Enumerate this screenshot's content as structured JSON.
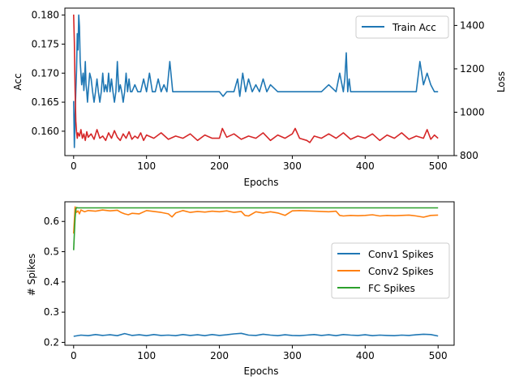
{
  "chart_data": [
    {
      "type": "line",
      "xlabel": "Epochs",
      "ylabel": "Acc",
      "ylabel_right": "Loss",
      "xlim": [
        -12,
        522
      ],
      "ylim": [
        0.1558,
        0.1812
      ],
      "ylim_right": [
        800,
        1480
      ],
      "xticks": [
        0,
        100,
        200,
        300,
        400,
        500
      ],
      "yticks": [
        0.16,
        0.165,
        0.17,
        0.175,
        0.18
      ],
      "yticks_right": [
        800,
        1000,
        1200,
        1400
      ],
      "legend": {
        "position": "top-right"
      },
      "series": [
        {
          "name": "Train Acc",
          "axis": "left",
          "color": "#1f77b4",
          "x": [
            0,
            1,
            2,
            3,
            4,
            5,
            6,
            7,
            8,
            9,
            10,
            11,
            12,
            13,
            14,
            15,
            16,
            17,
            18,
            19,
            20,
            22,
            24,
            26,
            28,
            30,
            32,
            34,
            36,
            38,
            40,
            42,
            44,
            46,
            48,
            50,
            52,
            54,
            56,
            58,
            60,
            62,
            64,
            66,
            68,
            70,
            72,
            74,
            76,
            78,
            80,
            84,
            88,
            92,
            96,
            100,
            104,
            108,
            112,
            116,
            120,
            124,
            128,
            132,
            136,
            140,
            150,
            160,
            170,
            180,
            190,
            200,
            205,
            210,
            220,
            225,
            228,
            232,
            236,
            240,
            245,
            250,
            255,
            260,
            265,
            270,
            280,
            290,
            300,
            310,
            320,
            330,
            340,
            350,
            360,
            365,
            370,
            372,
            374,
            376,
            378,
            380,
            385,
            390,
            400,
            410,
            420,
            430,
            440,
            450,
            460,
            470,
            475,
            480,
            485,
            490,
            495,
            500
          ],
          "values": [
            0.1652,
            0.1572,
            0.1625,
            0.1668,
            0.1705,
            0.1768,
            0.174,
            0.18,
            0.178,
            0.172,
            0.17,
            0.168,
            0.169,
            0.17,
            0.167,
            0.169,
            0.172,
            0.168,
            0.1668,
            0.165,
            0.1668,
            0.17,
            0.169,
            0.1668,
            0.165,
            0.1668,
            0.169,
            0.1668,
            0.165,
            0.1668,
            0.17,
            0.1668,
            0.168,
            0.1668,
            0.17,
            0.1668,
            0.169,
            0.1668,
            0.165,
            0.1668,
            0.172,
            0.1668,
            0.168,
            0.1668,
            0.165,
            0.1668,
            0.17,
            0.1668,
            0.169,
            0.1668,
            0.1668,
            0.168,
            0.1668,
            0.1668,
            0.169,
            0.1668,
            0.17,
            0.1668,
            0.1668,
            0.169,
            0.1668,
            0.168,
            0.1668,
            0.172,
            0.1668,
            0.1668,
            0.1668,
            0.1668,
            0.1668,
            0.1668,
            0.1668,
            0.1668,
            0.166,
            0.1668,
            0.1668,
            0.169,
            0.166,
            0.17,
            0.1668,
            0.169,
            0.1668,
            0.168,
            0.1668,
            0.169,
            0.1668,
            0.168,
            0.1668,
            0.1668,
            0.1668,
            0.1668,
            0.1668,
            0.1668,
            0.1668,
            0.168,
            0.1668,
            0.17,
            0.1668,
            0.169,
            0.1735,
            0.1668,
            0.169,
            0.1668,
            0.1668,
            0.1668,
            0.1668,
            0.1668,
            0.1668,
            0.1668,
            0.1668,
            0.1668,
            0.1668,
            0.1668,
            0.172,
            0.168,
            0.17,
            0.168,
            0.1668,
            0.1668
          ]
        },
        {
          "name": "",
          "axis": "right",
          "color": "#d62728",
          "x": [
            0,
            1,
            2,
            3,
            4,
            5,
            6,
            8,
            10,
            12,
            14,
            16,
            18,
            20,
            24,
            28,
            32,
            36,
            40,
            44,
            48,
            52,
            56,
            60,
            64,
            68,
            72,
            76,
            80,
            84,
            88,
            92,
            96,
            100,
            110,
            120,
            130,
            140,
            150,
            160,
            170,
            180,
            190,
            200,
            204,
            210,
            220,
            230,
            240,
            250,
            260,
            270,
            280,
            290,
            300,
            304,
            310,
            320,
            324,
            330,
            340,
            350,
            360,
            370,
            380,
            390,
            400,
            410,
            420,
            430,
            440,
            450,
            460,
            470,
            480,
            485,
            490,
            495,
            500
          ],
          "values": [
            1450,
            1320,
            1100,
            960,
            910,
            880,
            905,
            890,
            920,
            880,
            900,
            870,
            910,
            885,
            900,
            875,
            920,
            880,
            890,
            870,
            905,
            880,
            915,
            885,
            870,
            900,
            880,
            910,
            875,
            890,
            880,
            905,
            870,
            895,
            880,
            905,
            875,
            890,
            880,
            900,
            870,
            895,
            880,
            880,
            925,
            885,
            900,
            875,
            890,
            880,
            905,
            870,
            895,
            880,
            900,
            925,
            880,
            870,
            860,
            890,
            880,
            900,
            880,
            905,
            875,
            890,
            880,
            900,
            870,
            895,
            880,
            905,
            875,
            890,
            880,
            920,
            875,
            895,
            880
          ]
        }
      ]
    },
    {
      "type": "line",
      "xlabel": "Epochs",
      "ylabel": "# Spikes",
      "xlim": [
        -12,
        522
      ],
      "ylim": [
        0.1905,
        0.665
      ],
      "xticks": [
        0,
        100,
        200,
        300,
        400,
        500
      ],
      "yticks": [
        0.2,
        0.3,
        0.4,
        0.5,
        0.6
      ],
      "legend": {
        "position": "center-right"
      },
      "series": [
        {
          "name": "Conv1 Spikes",
          "color": "#1f77b4",
          "x": [
            0,
            10,
            20,
            30,
            40,
            50,
            60,
            70,
            80,
            90,
            100,
            110,
            120,
            130,
            140,
            150,
            160,
            170,
            180,
            190,
            200,
            210,
            220,
            230,
            240,
            250,
            260,
            270,
            280,
            290,
            300,
            310,
            320,
            330,
            340,
            350,
            360,
            370,
            380,
            390,
            400,
            410,
            420,
            430,
            440,
            450,
            460,
            470,
            480,
            490,
            500
          ],
          "values": [
            0.22,
            0.224,
            0.222,
            0.226,
            0.223,
            0.225,
            0.222,
            0.229,
            0.223,
            0.225,
            0.222,
            0.226,
            0.223,
            0.224,
            0.222,
            0.226,
            0.223,
            0.225,
            0.222,
            0.226,
            0.223,
            0.225,
            0.228,
            0.23,
            0.224,
            0.223,
            0.227,
            0.224,
            0.222,
            0.225,
            0.223,
            0.222,
            0.224,
            0.226,
            0.223,
            0.225,
            0.222,
            0.226,
            0.224,
            0.223,
            0.225,
            0.222,
            0.224,
            0.223,
            0.222,
            0.224,
            0.223,
            0.225,
            0.227,
            0.226,
            0.221
          ]
        },
        {
          "name": "Conv2 Spikes",
          "color": "#ff7f0e",
          "x": [
            0,
            2,
            4,
            6,
            8,
            10,
            15,
            20,
            30,
            40,
            50,
            60,
            65,
            70,
            75,
            80,
            90,
            100,
            110,
            120,
            130,
            135,
            140,
            150,
            160,
            170,
            180,
            190,
            200,
            210,
            220,
            230,
            235,
            240,
            250,
            260,
            270,
            280,
            290,
            300,
            310,
            320,
            330,
            340,
            350,
            360,
            365,
            370,
            380,
            390,
            400,
            410,
            420,
            430,
            440,
            450,
            460,
            470,
            480,
            490,
            500
          ],
          "values": [
            0.56,
            0.648,
            0.63,
            0.635,
            0.625,
            0.638,
            0.632,
            0.636,
            0.634,
            0.638,
            0.635,
            0.637,
            0.63,
            0.625,
            0.622,
            0.627,
            0.625,
            0.636,
            0.633,
            0.63,
            0.625,
            0.615,
            0.628,
            0.636,
            0.63,
            0.633,
            0.631,
            0.634,
            0.632,
            0.635,
            0.63,
            0.633,
            0.62,
            0.618,
            0.632,
            0.628,
            0.632,
            0.628,
            0.62,
            0.635,
            0.636,
            0.635,
            0.634,
            0.633,
            0.632,
            0.634,
            0.62,
            0.618,
            0.62,
            0.619,
            0.62,
            0.622,
            0.618,
            0.62,
            0.619,
            0.62,
            0.621,
            0.618,
            0.614,
            0.62,
            0.621
          ]
        },
        {
          "name": "FC Spikes",
          "color": "#2ca02c",
          "x": [
            0,
            1,
            2,
            3,
            4,
            6,
            10,
            50,
            100,
            200,
            300,
            400,
            500
          ],
          "values": [
            0.505,
            0.56,
            0.612,
            0.64,
            0.646,
            0.645,
            0.645,
            0.645,
            0.645,
            0.645,
            0.645,
            0.645,
            0.645
          ]
        }
      ]
    }
  ]
}
